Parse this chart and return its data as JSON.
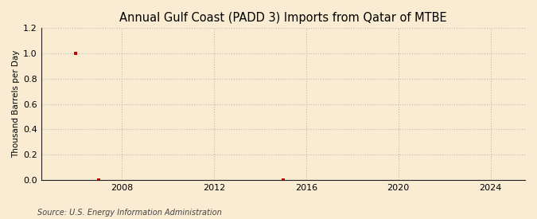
{
  "title": "Annual Gulf Coast (PADD 3) Imports from Qatar of MTBE",
  "ylabel": "Thousand Barrels per Day",
  "source": "Source: U.S. Energy Information Administration",
  "background_color": "#faecd2",
  "data_points": [
    {
      "year": 2006,
      "value": 1.0
    },
    {
      "year": 2007,
      "value": 0.0
    },
    {
      "year": 2015,
      "value": 0.0
    }
  ],
  "xlim": [
    2004.5,
    2025.5
  ],
  "ylim": [
    0.0,
    1.2
  ],
  "yticks": [
    0.0,
    0.2,
    0.4,
    0.6,
    0.8,
    1.0,
    1.2
  ],
  "xticks": [
    2008,
    2012,
    2016,
    2020,
    2024
  ],
  "marker_color": "#cc0000",
  "marker_size": 3,
  "grid_color": "#bbbbbb",
  "grid_linestyle": ":",
  "grid_linewidth": 0.8,
  "title_fontsize": 10.5,
  "ylabel_fontsize": 7.5,
  "tick_fontsize": 8,
  "source_fontsize": 7
}
